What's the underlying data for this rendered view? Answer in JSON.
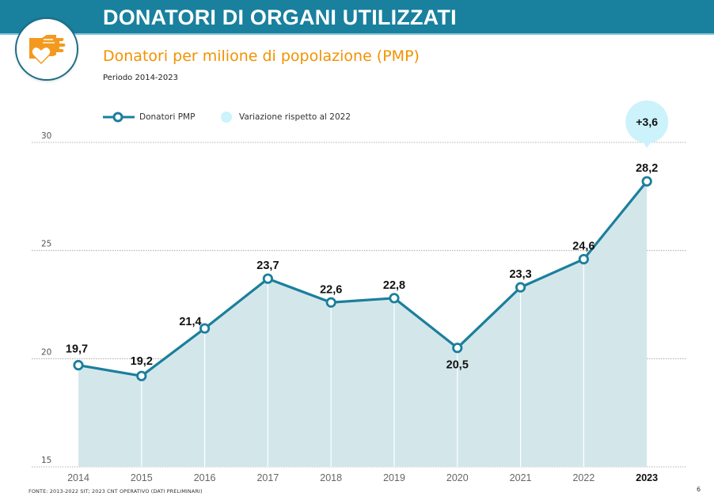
{
  "header": {
    "title": "DONATORI DI ORGANI UTILIZZATI",
    "subtitle": "Donatori per milione di popolazione (PMP)",
    "period": "Periodo 2014-2023",
    "logo_icon": "hand-heart-icon"
  },
  "colors": {
    "header_bar": "#19809e",
    "subtitle": "#f39200",
    "line": "#1b7f9c",
    "area_fill": "#d3e7eb",
    "callout_bubble": "#ccf2fb",
    "icon": "#f39a1e"
  },
  "chart_data": {
    "type": "area",
    "title": "Donatori per milione di popolazione (PMP)",
    "subtitle": "Periodo 2014-2023",
    "xlabel": "",
    "ylabel": "",
    "categories": [
      "2014",
      "2015",
      "2016",
      "2017",
      "2018",
      "2019",
      "2020",
      "2021",
      "2022",
      "2023"
    ],
    "highlight_category": "2023",
    "series": [
      {
        "name": "Donatori PMP",
        "values": [
          19.7,
          19.2,
          21.4,
          23.7,
          22.6,
          22.8,
          20.5,
          23.3,
          24.6,
          28.2
        ],
        "labels": [
          "19,7",
          "19,2",
          "21,4",
          "23,7",
          "22,6",
          "22,8",
          "20,5",
          "23,3",
          "24,6",
          "28,2"
        ]
      }
    ],
    "label_positions": [
      "above",
      "above",
      "left",
      "above",
      "above",
      "above",
      "below",
      "above",
      "above",
      "above"
    ],
    "ylim": [
      15,
      30
    ],
    "yticks": [
      15,
      20,
      25,
      30
    ],
    "ytick_labels": [
      "15",
      "20",
      "25",
      "30"
    ],
    "grid": true,
    "legend": [
      {
        "label": "Donatori PMP",
        "marker": "line-circle"
      },
      {
        "label": "Variazione rispetto al 2022",
        "marker": "bubble"
      }
    ],
    "legend_position": "top-left",
    "annotations": [
      {
        "category": "2023",
        "text": "+3,6",
        "type": "bubble",
        "meaning": "Variazione rispetto al 2022"
      }
    ]
  },
  "footer": {
    "source": "FONTE: 2013-2022 SIT; 2023 CNT OPERATIVO (DATI PRELIMINARI)",
    "page_number": "6"
  }
}
